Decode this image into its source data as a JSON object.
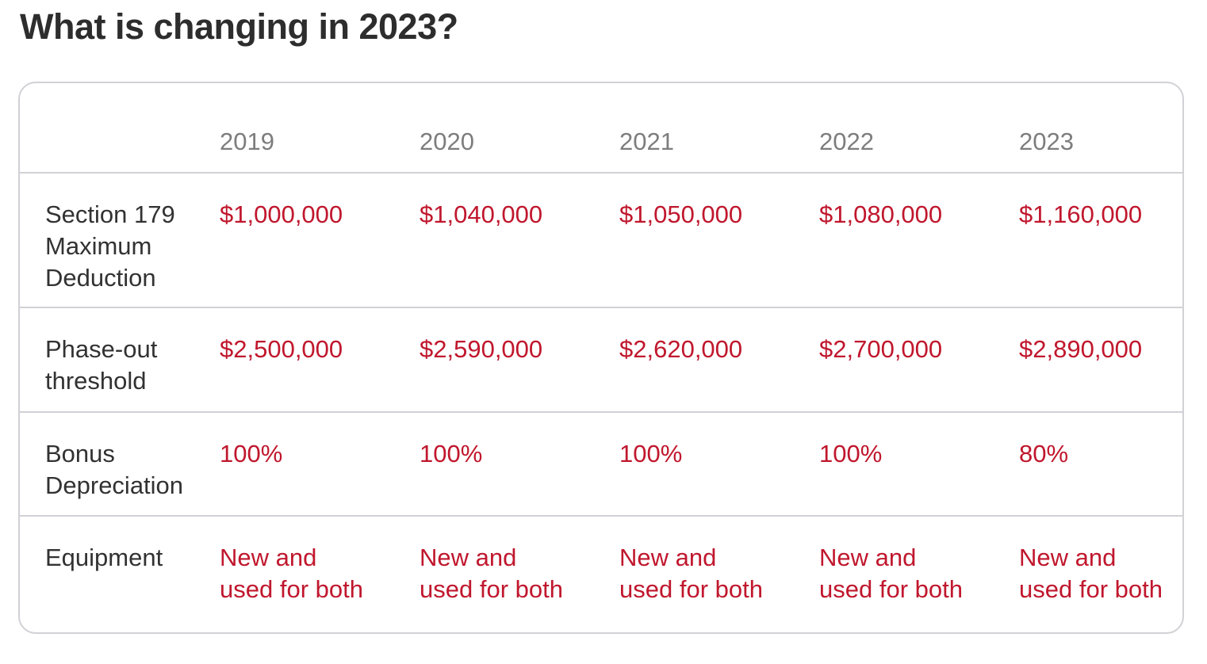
{
  "page_title": "What is changing in 2023?",
  "table": {
    "column_headers": [
      "2019",
      "2020",
      "2021",
      "2022",
      "2023"
    ],
    "rows": [
      {
        "label": "Section 179 Maximum Deduction",
        "values": [
          "$1,000,000",
          "$1,040,000",
          "$1,050,000",
          "$1,080,000",
          "$1,160,000"
        ]
      },
      {
        "label": "Phase-out threshold",
        "values": [
          "$2,500,000",
          "$2,590,000",
          "$2,620,000",
          "$2,700,000",
          "$2,890,000"
        ]
      },
      {
        "label": "Bonus Depreciation",
        "values": [
          "100%",
          "100%",
          "100%",
          "100%",
          "80%"
        ]
      },
      {
        "label": "Equipment",
        "values": [
          "New and\nused for both",
          "New and\nused for both",
          "New and\nused for both",
          "New and\nused for both",
          "New and\nused for both"
        ]
      }
    ]
  },
  "colors": {
    "value_red": "#c0172d",
    "title_dark": "#2d2d2d",
    "label_dark": "#323232",
    "header_gray": "#7d7d7d",
    "border_gray": "#d1d1d6"
  }
}
